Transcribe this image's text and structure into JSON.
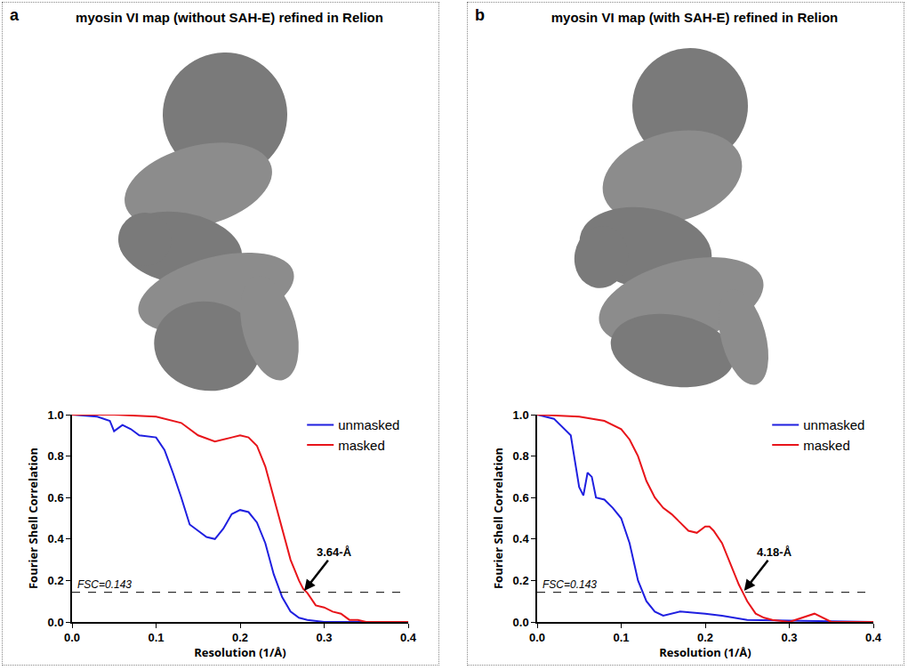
{
  "chart_data": [
    {
      "panel": "a",
      "title": "myosin VI map (without SAH-E) refined in Relion",
      "type": "line",
      "x_label": "Resolution (1/Å)",
      "y_label": "Fourier Shell Correlation",
      "xlim": [
        0,
        0.4
      ],
      "ylim": [
        0,
        1.0
      ],
      "xticks": [
        {
          "value": 0,
          "label": "0.0"
        },
        {
          "value": 0.1,
          "label": "0.1"
        },
        {
          "value": 0.2,
          "label": "0.2"
        },
        {
          "value": 0.3,
          "label": "0.3"
        },
        {
          "value": 0.4,
          "label": "0.4"
        }
      ],
      "yticks": [
        {
          "value": 0,
          "label": "0.0"
        },
        {
          "value": 0.2,
          "label": "0.2"
        },
        {
          "value": 0.4,
          "label": "0.4"
        },
        {
          "value": 0.6,
          "label": "0.6"
        },
        {
          "value": 0.8,
          "label": "0.8"
        },
        {
          "value": 1.0,
          "label": "1.0"
        }
      ],
      "legend": "upper right",
      "grid": false,
      "hline": {
        "y": 0.143,
        "label": "FSC=0.143"
      },
      "annotations": [
        {
          "text": "3.64-Å",
          "x": 0.275,
          "y": 0.143
        }
      ],
      "series": [
        {
          "name": "unmasked",
          "color": "#1f1fe0",
          "x": [
            0,
            0.03,
            0.045,
            0.05,
            0.06,
            0.07,
            0.08,
            0.1,
            0.11,
            0.12,
            0.13,
            0.14,
            0.15,
            0.16,
            0.17,
            0.18,
            0.19,
            0.2,
            0.21,
            0.22,
            0.23,
            0.24,
            0.25,
            0.26,
            0.27,
            0.28,
            0.3,
            0.4
          ],
          "values": [
            1,
            0.99,
            0.97,
            0.92,
            0.95,
            0.93,
            0.9,
            0.89,
            0.83,
            0.72,
            0.6,
            0.47,
            0.44,
            0.41,
            0.4,
            0.45,
            0.52,
            0.54,
            0.53,
            0.48,
            0.38,
            0.23,
            0.12,
            0.05,
            0.02,
            0.01,
            0,
            0
          ]
        },
        {
          "name": "masked",
          "color": "#e8141a",
          "x": [
            0,
            0.05,
            0.1,
            0.13,
            0.15,
            0.17,
            0.19,
            0.2,
            0.21,
            0.22,
            0.23,
            0.24,
            0.25,
            0.26,
            0.27,
            0.275,
            0.28,
            0.29,
            0.3,
            0.31,
            0.32,
            0.33,
            0.34,
            0.35,
            0.4
          ],
          "values": [
            1,
            1,
            0.99,
            0.96,
            0.9,
            0.87,
            0.89,
            0.9,
            0.89,
            0.85,
            0.75,
            0.6,
            0.45,
            0.3,
            0.2,
            0.16,
            0.14,
            0.08,
            0.07,
            0.05,
            0.04,
            0.01,
            0.01,
            0,
            0
          ]
        }
      ]
    },
    {
      "panel": "b",
      "title": "myosin VI map (with SAH-E) refined in Relion",
      "type": "line",
      "x_label": "Resolution (1/Å)",
      "y_label": "Fourier Shell Correlation",
      "xlim": [
        0,
        0.4
      ],
      "ylim": [
        0,
        1.0
      ],
      "xticks": [
        {
          "value": 0,
          "label": "0.0"
        },
        {
          "value": 0.1,
          "label": "0.1"
        },
        {
          "value": 0.2,
          "label": "0.2"
        },
        {
          "value": 0.3,
          "label": "0.3"
        },
        {
          "value": 0.4,
          "label": "0.4"
        }
      ],
      "yticks": [
        {
          "value": 0,
          "label": "0.0"
        },
        {
          "value": 0.2,
          "label": "0.2"
        },
        {
          "value": 0.4,
          "label": "0.4"
        },
        {
          "value": 0.6,
          "label": "0.6"
        },
        {
          "value": 0.8,
          "label": "0.8"
        },
        {
          "value": 1.0,
          "label": "1.0"
        }
      ],
      "legend": "upper right",
      "grid": false,
      "hline": {
        "y": 0.143,
        "label": "FSC=0.143"
      },
      "annotations": [
        {
          "text": "4.18-Å",
          "x": 0.245,
          "y": 0.143
        }
      ],
      "series": [
        {
          "name": "unmasked",
          "color": "#1f1fe0",
          "x": [
            0,
            0.02,
            0.04,
            0.05,
            0.055,
            0.06,
            0.065,
            0.07,
            0.08,
            0.09,
            0.1,
            0.11,
            0.12,
            0.13,
            0.14,
            0.15,
            0.17,
            0.2,
            0.22,
            0.25,
            0.4
          ],
          "values": [
            1,
            0.98,
            0.9,
            0.65,
            0.61,
            0.72,
            0.7,
            0.6,
            0.59,
            0.55,
            0.5,
            0.38,
            0.2,
            0.1,
            0.05,
            0.03,
            0.05,
            0.04,
            0.03,
            0.01,
            0
          ]
        },
        {
          "name": "masked",
          "color": "#e8141a",
          "x": [
            0,
            0.05,
            0.08,
            0.1,
            0.11,
            0.12,
            0.13,
            0.14,
            0.15,
            0.16,
            0.17,
            0.18,
            0.19,
            0.2,
            0.205,
            0.21,
            0.22,
            0.23,
            0.24,
            0.245,
            0.25,
            0.26,
            0.27,
            0.28,
            0.3,
            0.33,
            0.34,
            0.35,
            0.4
          ],
          "values": [
            1,
            0.99,
            0.97,
            0.93,
            0.88,
            0.8,
            0.68,
            0.6,
            0.55,
            0.52,
            0.48,
            0.44,
            0.43,
            0.46,
            0.46,
            0.44,
            0.38,
            0.28,
            0.18,
            0.14,
            0.1,
            0.04,
            0.02,
            0.01,
            0,
            0.04,
            0.02,
            0,
            0
          ]
        }
      ]
    }
  ]
}
